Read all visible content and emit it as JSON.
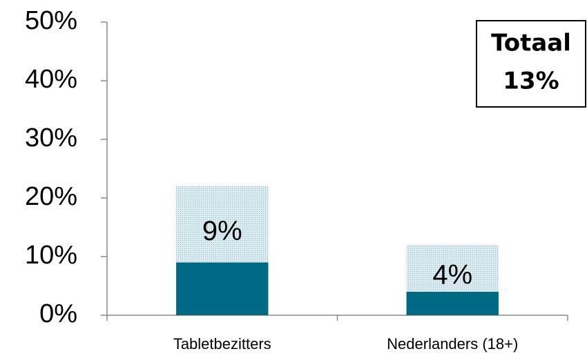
{
  "chart_data": {
    "type": "stacked-bar",
    "categories": [
      "Tabletbezitters",
      "Nederlanders (18+)"
    ],
    "series": [
      {
        "color": "#006a84",
        "values": [
          9,
          4
        ],
        "value_labels": [
          "9%",
          "4%"
        ]
      },
      {
        "color": "#cfe3ea",
        "pattern": "dotted",
        "values": [
          13,
          8
        ]
      }
    ],
    "ylim": [
      0,
      50
    ],
    "yticks": [
      {
        "value": 0,
        "label": "0%"
      },
      {
        "value": 10,
        "label": "10%"
      },
      {
        "value": 20,
        "label": "20%"
      },
      {
        "value": 30,
        "label": "30%"
      },
      {
        "value": 40,
        "label": "40%"
      },
      {
        "value": 50,
        "label": "50%"
      }
    ],
    "grid": false,
    "annotation": {
      "lines": [
        "Totaal",
        "13%"
      ]
    }
  }
}
